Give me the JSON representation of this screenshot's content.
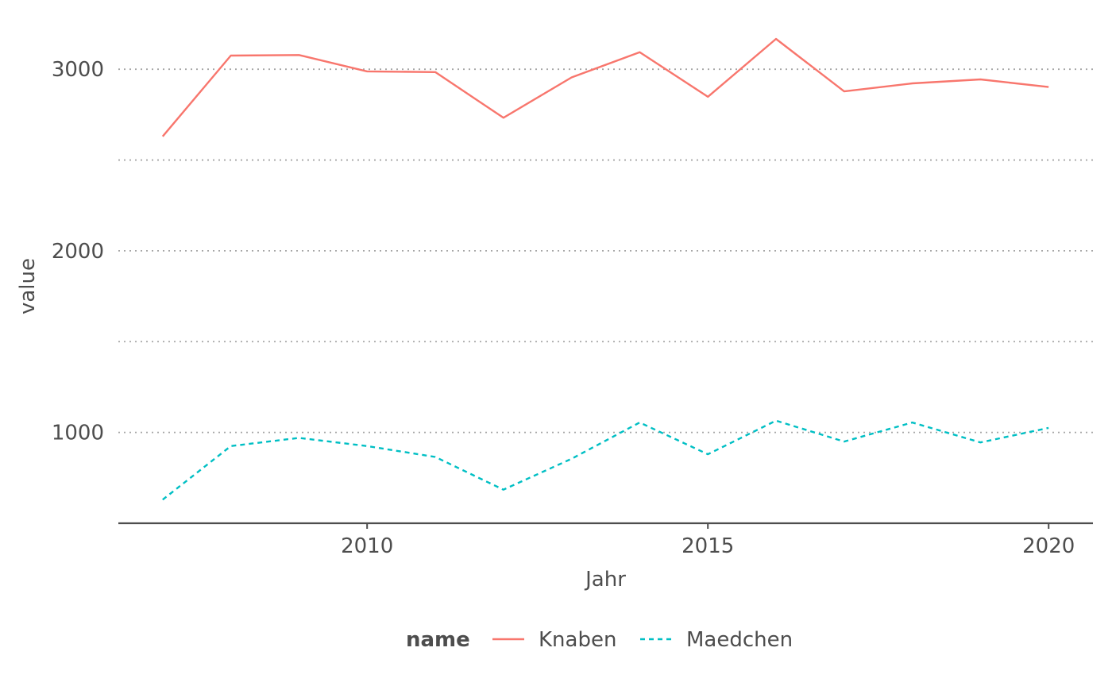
{
  "chart_data": {
    "type": "line",
    "title": "",
    "xlabel": "Jahr",
    "ylabel": "value",
    "xlim": [
      2006.35,
      2020.65
    ],
    "ylim": [
      500,
      3250
    ],
    "x_ticks": [
      2010,
      2015,
      2020
    ],
    "x_tick_labels": [
      "2010",
      "2015",
      "2020"
    ],
    "y_ticks": [
      1000,
      2000,
      3000
    ],
    "y_tick_labels": [
      "1000",
      "2000",
      "3000"
    ],
    "y_gridlines": [
      1000,
      1500,
      2000,
      2500,
      3000
    ],
    "grid": {
      "x": false,
      "y": true,
      "style": "dotted"
    },
    "legend": {
      "title": "name",
      "position": "bottom"
    },
    "x": [
      2007,
      2008,
      2009,
      2010,
      2011,
      2012,
      2013,
      2014,
      2015,
      2016,
      2017,
      2018,
      2019,
      2020
    ],
    "series": [
      {
        "name": "Knaben",
        "color": "#F8766D",
        "dash": "solid",
        "values": [
          2630,
          3075,
          3078,
          2988,
          2984,
          2733,
          2955,
          3094,
          2848,
          3167,
          2878,
          2922,
          2944,
          2902
        ]
      },
      {
        "name": "Maedchen",
        "color": "#00BFC4",
        "dash": "dashed",
        "values": [
          630,
          925,
          970,
          925,
          865,
          685,
          855,
          1055,
          880,
          1065,
          950,
          1055,
          945,
          1025
        ]
      }
    ]
  }
}
